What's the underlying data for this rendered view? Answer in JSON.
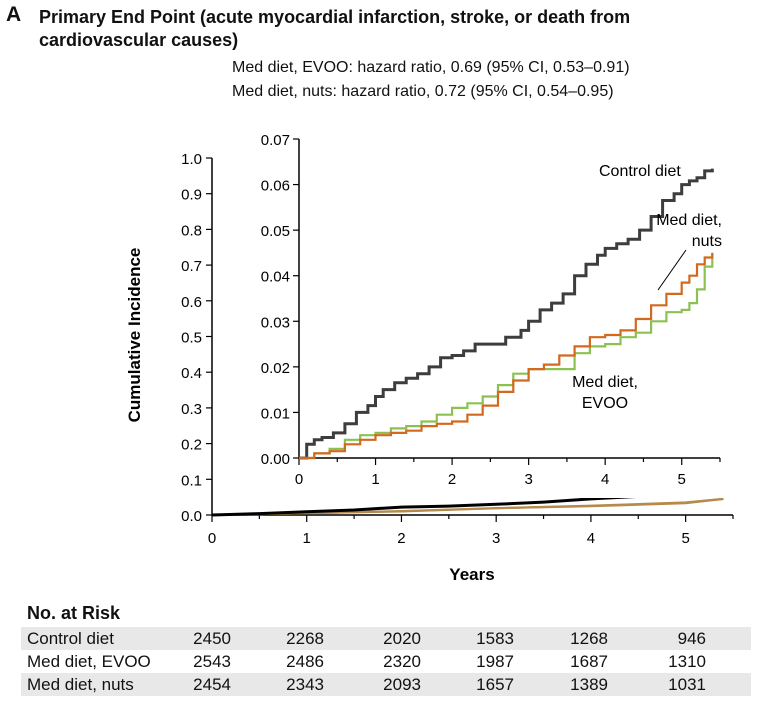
{
  "panel_label": "A",
  "title": "Primary End Point (acute myocardial infarction, stroke, or death from cardiovascular causes)",
  "hazard_ratios": [
    "Med diet, EVOO: hazard ratio, 0.69 (95% CI, 0.53–0.91)",
    "Med diet, nuts: hazard ratio, 0.72 (95% CI, 0.54–0.95)"
  ],
  "colors": {
    "control": "#3d3d3d",
    "evoo": "#8cc152",
    "nuts": "#d2691e",
    "main_control": "#000000",
    "main_med": "#b58a4c"
  },
  "chart_data": [
    {
      "type": "line",
      "panel": "main",
      "xlabel": "Years",
      "ylabel": "Cumulative Incidence",
      "xlim": [
        0,
        5.5
      ],
      "ylim": [
        0,
        1.0
      ],
      "x_ticks": [
        "0",
        "1",
        "2",
        "3",
        "4",
        "5"
      ],
      "y_ticks": [
        "0.0",
        "0.1",
        "0.2",
        "0.3",
        "0.4",
        "0.5",
        "0.6",
        "0.7",
        "0.8",
        "0.9",
        "1.0"
      ],
      "series": [
        {
          "name": "Control diet",
          "x": [
            0,
            0.5,
            1,
            1.5,
            2,
            2.5,
            3,
            3.5,
            4,
            4.5,
            5,
            5.4
          ],
          "y": [
            0,
            0.004,
            0.009,
            0.014,
            0.022,
            0.025,
            0.03,
            0.036,
            0.045,
            0.052,
            0.058,
            0.063
          ]
        },
        {
          "name": "Med diet, EVOO",
          "x": [
            0,
            1,
            2,
            3,
            4,
            5,
            5.4
          ],
          "y": [
            0,
            0.005,
            0.011,
            0.019,
            0.025,
            0.033,
            0.045
          ]
        },
        {
          "name": "Med diet, nuts",
          "x": [
            0,
            1,
            2,
            3,
            4,
            5,
            5.4
          ],
          "y": [
            0,
            0.005,
            0.01,
            0.019,
            0.026,
            0.035,
            0.045
          ]
        }
      ]
    },
    {
      "type": "line",
      "panel": "inset",
      "xlim": [
        0,
        5.5
      ],
      "ylim": [
        0,
        0.07
      ],
      "x_ticks": [
        "0",
        "1",
        "2",
        "3",
        "4",
        "5"
      ],
      "y_ticks": [
        "0.00",
        "0.01",
        "0.02",
        "0.03",
        "0.04",
        "0.05",
        "0.06",
        "0.07"
      ],
      "series": [
        {
          "name": "Control diet",
          "x": [
            0,
            0.1,
            0.2,
            0.3,
            0.45,
            0.6,
            0.75,
            0.9,
            1.0,
            1.1,
            1.25,
            1.4,
            1.55,
            1.7,
            1.85,
            2.0,
            2.15,
            2.3,
            2.5,
            2.7,
            2.9,
            3.0,
            3.15,
            3.3,
            3.45,
            3.6,
            3.75,
            3.9,
            4.0,
            4.15,
            4.3,
            4.45,
            4.6,
            4.75,
            4.9,
            5.0,
            5.1,
            5.2,
            5.3,
            5.4
          ],
          "y": [
            0,
            0.003,
            0.004,
            0.0045,
            0.0055,
            0.0075,
            0.01,
            0.0115,
            0.0135,
            0.015,
            0.0165,
            0.0175,
            0.0185,
            0.02,
            0.022,
            0.0225,
            0.0235,
            0.025,
            0.025,
            0.0265,
            0.028,
            0.03,
            0.0325,
            0.034,
            0.036,
            0.04,
            0.0425,
            0.0445,
            0.046,
            0.047,
            0.048,
            0.05,
            0.053,
            0.0565,
            0.058,
            0.06,
            0.0608,
            0.0615,
            0.063,
            0.0635
          ]
        },
        {
          "name": "Med diet, EVOO",
          "x": [
            0,
            0.2,
            0.4,
            0.6,
            0.8,
            1.0,
            1.2,
            1.4,
            1.6,
            1.8,
            2.0,
            2.2,
            2.4,
            2.6,
            2.8,
            3.0,
            3.2,
            3.4,
            3.6,
            3.8,
            4.0,
            4.2,
            4.4,
            4.6,
            4.8,
            5.0,
            5.1,
            5.2,
            5.3,
            5.4
          ],
          "y": [
            0,
            0.001,
            0.002,
            0.004,
            0.005,
            0.0055,
            0.0065,
            0.007,
            0.008,
            0.0095,
            0.011,
            0.012,
            0.0135,
            0.016,
            0.0185,
            0.0195,
            0.0195,
            0.0195,
            0.023,
            0.0245,
            0.025,
            0.0265,
            0.0275,
            0.03,
            0.032,
            0.0325,
            0.034,
            0.037,
            0.042,
            0.045
          ]
        },
        {
          "name": "Med diet, nuts",
          "x": [
            0,
            0.2,
            0.4,
            0.6,
            0.8,
            1.0,
            1.2,
            1.4,
            1.6,
            1.8,
            2.0,
            2.2,
            2.4,
            2.6,
            2.8,
            3.0,
            3.2,
            3.4,
            3.6,
            3.8,
            4.0,
            4.2,
            4.4,
            4.6,
            4.8,
            5.0,
            5.1,
            5.2,
            5.3,
            5.4
          ],
          "y": [
            0,
            0.001,
            0.0015,
            0.003,
            0.004,
            0.005,
            0.0055,
            0.006,
            0.007,
            0.0075,
            0.008,
            0.0095,
            0.0115,
            0.0145,
            0.017,
            0.0195,
            0.0205,
            0.0225,
            0.0245,
            0.0265,
            0.027,
            0.028,
            0.0305,
            0.0335,
            0.036,
            0.0385,
            0.04,
            0.0425,
            0.044,
            0.045
          ]
        }
      ],
      "annotations": [
        {
          "text": "Control diet",
          "series": "Control diet"
        },
        {
          "text": "Med diet,",
          "text2": "nuts",
          "series": "Med diet, nuts"
        },
        {
          "text": "Med diet,",
          "text2": "EVOO",
          "series": "Med diet, EVOO"
        }
      ]
    }
  ],
  "risk_table": {
    "title": "No. at Risk",
    "rows": [
      {
        "label": "Control diet",
        "values": [
          "2450",
          "2268",
          "2020",
          "1583",
          "1268",
          "946"
        ]
      },
      {
        "label": "Med diet, EVOO",
        "values": [
          "2543",
          "2486",
          "2320",
          "1987",
          "1687",
          "1310"
        ]
      },
      {
        "label": "Med diet, nuts",
        "values": [
          "2454",
          "2343",
          "2093",
          "1657",
          "1389",
          "1031"
        ]
      }
    ]
  }
}
